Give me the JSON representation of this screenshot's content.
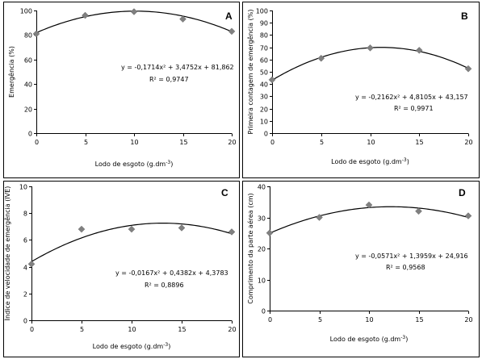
{
  "chart_data": [
    {
      "type": "scatter",
      "panel_letter": "A",
      "xlabel": "Lodo de esgoto (g.dm",
      "xlabel_sup": "-3",
      "xlabel_end": ")",
      "ylabel": "Emergência (%)",
      "x_ticks": [
        "0",
        "5",
        "10",
        "15",
        "20"
      ],
      "y_ticks": [
        "0",
        "20",
        "40",
        "60",
        "80",
        "100"
      ],
      "xlim": [
        0,
        20
      ],
      "ylim": [
        0,
        100
      ],
      "x": [
        0,
        5,
        10,
        15,
        20
      ],
      "y": [
        81,
        96,
        99,
        93,
        83
      ],
      "fit": {
        "a": -0.1714,
        "b": 3.4752,
        "c": 81.862
      },
      "equation": "y = -0,1714x² + 3,4752x + 81,862",
      "r2": "R² = 0,9747",
      "grid": false
    },
    {
      "type": "scatter",
      "panel_letter": "B",
      "xlabel": "Lodo de esgoto (g.dm",
      "xlabel_sup": "-3",
      "xlabel_end": ")",
      "ylabel": "Primeira contagem de emergência (%)",
      "x_ticks": [
        "0",
        "5",
        "10",
        "15",
        "20"
      ],
      "y_ticks": [
        "0",
        "10",
        "20",
        "30",
        "40",
        "50",
        "60",
        "70",
        "80",
        "90",
        "100"
      ],
      "xlim": [
        0,
        20
      ],
      "ylim": [
        0,
        100
      ],
      "x": [
        0,
        5,
        10,
        15,
        20
      ],
      "y": [
        43.5,
        61,
        69.5,
        67.5,
        52.5
      ],
      "fit": {
        "a": -0.2162,
        "b": 4.8105,
        "c": 43.157
      },
      "equation": "y = -0,2162x² + 4,8105x + 43,157",
      "r2": "R² = 0,9971",
      "grid": false
    },
    {
      "type": "scatter",
      "panel_letter": "C",
      "xlabel": "Lodo de esgoto (g.dm",
      "xlabel_sup": "-3",
      "xlabel_end": ")",
      "ylabel": "Índice de velocidade de emergência (IVE)",
      "x_ticks": [
        "0",
        "5",
        "10",
        "15",
        "20"
      ],
      "y_ticks": [
        "0",
        "2",
        "4",
        "6",
        "8",
        "10"
      ],
      "xlim": [
        0,
        20
      ],
      "ylim": [
        0,
        10
      ],
      "x": [
        0,
        5,
        10,
        15,
        20
      ],
      "y": [
        4.2,
        6.8,
        6.8,
        6.9,
        6.6
      ],
      "fit": {
        "a": -0.0167,
        "b": 0.4382,
        "c": 4.3783
      },
      "equation": "y = -0,0167x² + 0,4382x + 4,3783",
      "r2": "R² = 0,8896",
      "grid": false
    },
    {
      "type": "scatter",
      "panel_letter": "D",
      "xlabel": "Lodo de esgoto (g.dm",
      "xlabel_sup": "-3",
      "xlabel_end": ")",
      "ylabel": "Comprimento da parte aérea (cm)",
      "x_ticks": [
        "0",
        "5",
        "10",
        "15",
        "20"
      ],
      "y_ticks": [
        "0",
        "10",
        "20",
        "30",
        "40"
      ],
      "xlim": [
        0,
        20
      ],
      "ylim": [
        0,
        40
      ],
      "x": [
        0,
        5,
        10,
        15,
        20
      ],
      "y": [
        25,
        30,
        34,
        32,
        30.5
      ],
      "fit": {
        "a": -0.0571,
        "b": 1.3959,
        "c": 24.916
      },
      "equation": "y = -0,0571x² + 1,3959x + 24,916",
      "r2": "R² = 0,9568",
      "grid": false
    }
  ],
  "colors": {
    "marker": "#808080",
    "curve": "#000000",
    "frame": "#000000"
  }
}
